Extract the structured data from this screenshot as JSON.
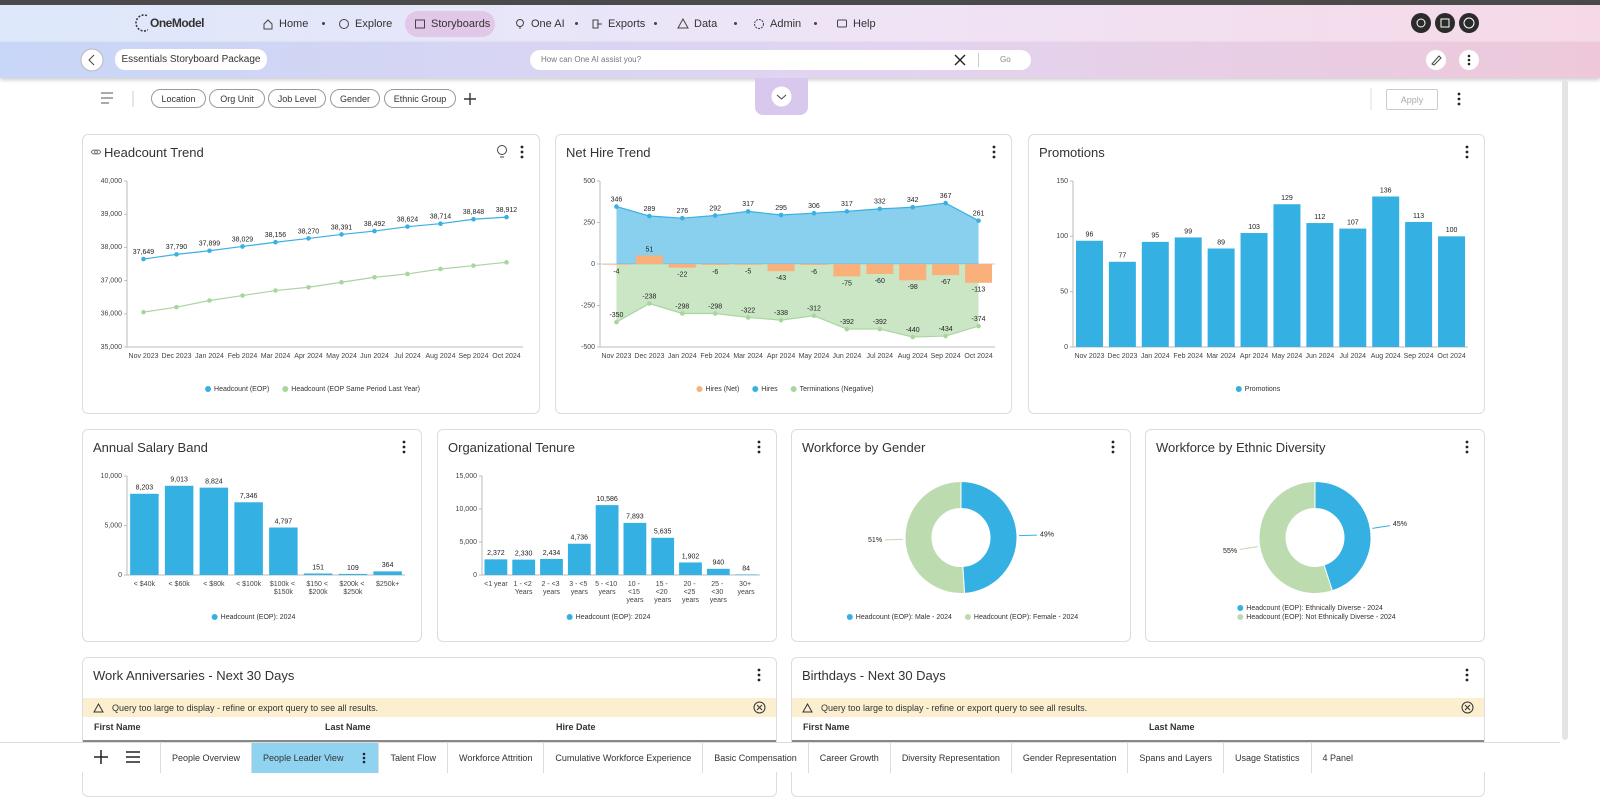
{
  "nav": {
    "logo": "OneModel",
    "items": [
      "Home",
      "Explore",
      "Storyboards",
      "One AI",
      "Exports",
      "Data",
      "Admin",
      "Help"
    ]
  },
  "toolbar": {
    "storyboard": "Essentials Storyboard Package",
    "search_placeholder": "How can One AI assist you?",
    "go": "Go"
  },
  "filters": {
    "items": [
      "Location",
      "Org Unit",
      "Job Level",
      "Gender",
      "Ethnic Group"
    ],
    "apply": "Apply"
  },
  "chart_data": [
    {
      "type": "line",
      "title": "Headcount Trend",
      "categories": [
        "Nov 2023",
        "Dec 2023",
        "Jan 2024",
        "Feb 2024",
        "Mar 2024",
        "Apr 2024",
        "May 2024",
        "Jun 2024",
        "Jul 2024",
        "Aug 2024",
        "Sep 2024",
        "Oct 2024"
      ],
      "ylim": [
        35000,
        40000
      ],
      "yticks": [
        {
          "value": 35000,
          "label": "35,000"
        },
        {
          "value": 36000,
          "label": "36,000"
        },
        {
          "value": 37000,
          "label": "37,000"
        },
        {
          "value": 38000,
          "label": "38,000"
        },
        {
          "value": 39000,
          "label": "39,000"
        },
        {
          "value": 40000,
          "label": "40,000"
        }
      ],
      "grid": false,
      "series": [
        {
          "name": "Headcount (EOP)",
          "color": "#3ab0e2",
          "values": [
            37649,
            37790,
            37899,
            38029,
            38156,
            38270,
            38391,
            38492,
            38624,
            38714,
            38848,
            38912
          ],
          "value_labels": [
            "37,649",
            "37,790",
            "37,899",
            "38,029",
            "38,156",
            "38,270",
            "38,391",
            "38,492",
            "38,624",
            "38,714",
            "38,848",
            "38,912"
          ]
        },
        {
          "name": "Headcount (EOP Same Period Last Year)",
          "color": "#a9d69f",
          "values": [
            36050,
            36200,
            36400,
            36550,
            36700,
            36800,
            36950,
            37100,
            37200,
            37350,
            37450,
            37550
          ]
        }
      ]
    },
    {
      "type": "combo",
      "title": "Net Hire Trend",
      "categories": [
        "Nov 2023",
        "Dec 2023",
        "Jan 2024",
        "Feb 2024",
        "Mar 2024",
        "Apr 2024",
        "May 2024",
        "Jun 2024",
        "Jul 2024",
        "Aug 2024",
        "Sep 2024",
        "Oct 2024"
      ],
      "ylim": [
        -500,
        500
      ],
      "yticks": [
        -500,
        -250,
        0,
        250,
        500
      ],
      "grid": false,
      "series": [
        {
          "name": "Hires (Net)",
          "kind": "bar",
          "color": "#f9b07a",
          "values": [
            -4,
            51,
            -22,
            -6,
            -5,
            -43,
            -6,
            -75,
            -60,
            -98,
            -67,
            -113
          ],
          "data_labels": true
        },
        {
          "name": "Hires",
          "kind": "area",
          "color": "#3ab0e2",
          "values": [
            346,
            289,
            276,
            292,
            317,
            295,
            306,
            317,
            332,
            342,
            367,
            261
          ],
          "data_labels": true
        },
        {
          "name": "Terminations (Negative)",
          "kind": "area",
          "color": "#a9d69f",
          "values": [
            -350,
            -238,
            -298,
            -298,
            -322,
            -338,
            -312,
            -392,
            -392,
            -440,
            -434,
            -374
          ],
          "data_labels": true
        }
      ]
    },
    {
      "type": "bar",
      "title": "Promotions",
      "categories": [
        "Nov 2023",
        "Dec 2023",
        "Jan 2024",
        "Feb 2024",
        "Mar 2024",
        "Apr 2024",
        "May 2024",
        "Jun 2024",
        "Jul 2024",
        "Aug 2024",
        "Sep 2024",
        "Oct 2024"
      ],
      "ylim": [
        0,
        150
      ],
      "yticks": [
        0,
        50,
        100,
        150
      ],
      "grid": false,
      "series": [
        {
          "name": "Promotions",
          "color": "#35b0e3",
          "values": [
            96,
            77,
            95,
            99,
            89,
            103,
            129,
            112,
            107,
            136,
            113,
            100
          ],
          "data_labels": true
        }
      ]
    },
    {
      "type": "bar",
      "title": "Annual Salary Band",
      "categories": [
        "< $40k",
        "< $60k",
        "< $80k",
        "< $100k",
        "$100k < $150k",
        "$150 < $200k",
        "$200k < $250k",
        "$250k+"
      ],
      "ylim": [
        0,
        10000
      ],
      "yticks": [
        0,
        {
          "value": 5000,
          "label": "5,000"
        },
        {
          "value": 10000,
          "label": "10,000"
        }
      ],
      "grid": false,
      "series": [
        {
          "name": "Headcount (EOP): 2024",
          "color": "#35b0e3",
          "values": [
            8203,
            9013,
            8824,
            7346,
            4797,
            151,
            109,
            364
          ],
          "value_labels": [
            "8,203",
            "9,013",
            "8,824",
            "7,346",
            "4,797",
            "151",
            "109",
            "364"
          ]
        }
      ]
    },
    {
      "type": "bar",
      "title": "Organizational Tenure",
      "categories": [
        "<1 year",
        "1 - <2 Years",
        "2 - <3 years",
        "3 - <5 years",
        "5 - <10 years",
        "10 - <15 years",
        "15 - <20 years",
        "20 - <25 years",
        "25 - <30 years",
        "30+ years"
      ],
      "ylim": [
        0,
        15000
      ],
      "yticks": [
        0,
        {
          "value": 5000,
          "label": "5,000"
        },
        {
          "value": 10000,
          "label": "10,000"
        },
        {
          "value": 15000,
          "label": "15,000"
        }
      ],
      "grid": false,
      "series": [
        {
          "name": "Headcount (EOP): 2024",
          "color": "#35b0e3",
          "values": [
            2372,
            2330,
            2434,
            4736,
            10586,
            7893,
            5635,
            1902,
            940,
            84
          ],
          "value_labels": [
            "2,372",
            "2,330",
            "2,434",
            "4,736",
            "10,586",
            "7,893",
            "5,635",
            "1,902",
            "940",
            "84"
          ]
        }
      ]
    },
    {
      "type": "pie",
      "title": "Workforce by Gender",
      "donut": true,
      "labels": [
        "Headcount (EOP): Male - 2024",
        "Headcount (EOP): Female - 2024"
      ],
      "values": [
        49,
        51
      ],
      "value_labels": [
        "49%",
        "51%"
      ],
      "colors": [
        "#35b0e3",
        "#bcdcb0"
      ]
    },
    {
      "type": "pie",
      "title": "Workforce by Ethnic Diversity",
      "donut": true,
      "labels": [
        "Headcount (EOP): Ethnically Diverse - 2024",
        "Headcount (EOP): Not Ethnically Diverse - 2024"
      ],
      "values": [
        45,
        55
      ],
      "value_labels": [
        "45%",
        "55%"
      ],
      "colors": [
        "#35b0e3",
        "#bcdcb0"
      ]
    }
  ],
  "tables": [
    {
      "title": "Work Anniversaries - Next 30 Days",
      "warning": "Query too large to display - refine or export query to see all results.",
      "columns": [
        "First Name",
        "Last Name",
        "Hire Date"
      ]
    },
    {
      "title": "Birthdays - Next 30 Days",
      "warning": "Query too large to display - refine or export query to see all results.",
      "columns": [
        "First Name",
        "Last Name"
      ]
    }
  ],
  "tabs": {
    "items": [
      "People Overview",
      "People Leader View",
      "Talent Flow",
      "Workforce Attrition",
      "Cumulative Workforce Experience",
      "Basic Compensation",
      "Career Growth",
      "Diversity Representation",
      "Gender Representation",
      "Spans and Layers",
      "Usage Statistics",
      "4 Panel"
    ],
    "active": 1
  }
}
